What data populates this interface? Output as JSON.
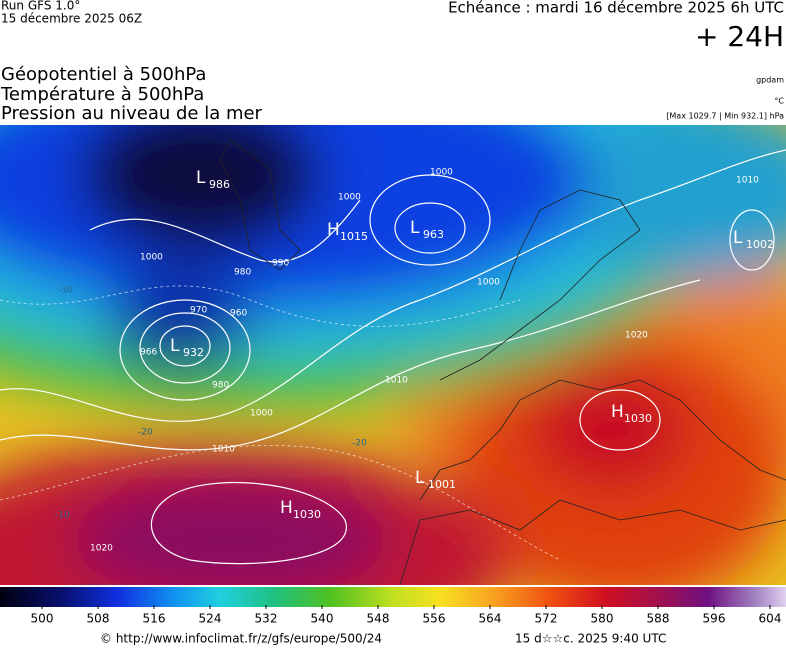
{
  "header": {
    "run": "Run GFS 1.0°",
    "run_date": "15 décembre 2025 06Z",
    "valid": "Echéance : mardi 16 décembre 2025 6h UTC",
    "lead": "+ 24H"
  },
  "titles": [
    "Géopotentiel à 500hPa",
    "Température à 500hPa",
    "Pression au niveau de la mer"
  ],
  "units": [
    "gpdam",
    "°C",
    "[Max 1029.7 | Min 932.1] hPa"
  ],
  "pressure_centers": [
    {
      "symbol": "L",
      "value": 986
    },
    {
      "symbol": "H",
      "value": 1015
    },
    {
      "symbol": "L",
      "value": 963
    },
    {
      "symbol": "L",
      "value": 932
    },
    {
      "symbol": "L",
      "value": 1002
    },
    {
      "symbol": "H",
      "value": 1030
    },
    {
      "symbol": "L",
      "value": 1001
    },
    {
      "symbol": "H",
      "value": 1030
    }
  ],
  "isobar_labels": [
    1000,
    980,
    970,
    960,
    966,
    980,
    1000,
    1010,
    990,
    1000,
    1010,
    1000,
    1020,
    1010,
    1020,
    1000
  ],
  "temperature_labels": [
    -30,
    -20,
    -10,
    -20
  ],
  "colorbar": {
    "ticks": [
      500,
      508,
      516,
      524,
      532,
      540,
      548,
      556,
      564,
      572,
      580,
      588,
      596,
      604
    ]
  },
  "footer": {
    "url": "© http://www.infoclimat.fr/z/gfs/europe/500/24",
    "date": "15 d☆☆c. 2025  9:40 UTC"
  }
}
